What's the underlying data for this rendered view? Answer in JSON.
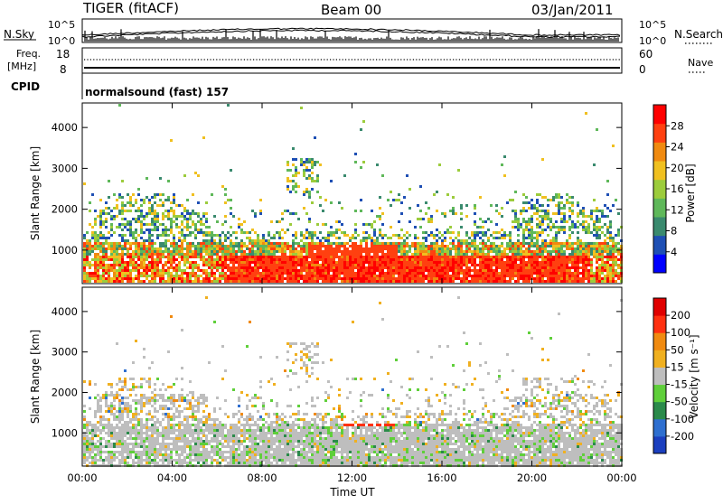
{
  "header": {
    "radar": "TIGER (fitACF)",
    "beam": "Beam 00",
    "date": "03/Jan/2011"
  },
  "params": {
    "nsky_label": "N.Sky",
    "nsky_ticks_left": [
      "10^5",
      "10^0"
    ],
    "nsky_ticks_right": [
      "10^5",
      "10^0"
    ],
    "nsearch_label": "N.Search",
    "freq_label_1": "Freq.",
    "freq_label_2": "[MHz]",
    "freq_ticks": [
      "18",
      "8"
    ],
    "nave_label": "Nave",
    "nave_ticks": [
      "60",
      "0"
    ],
    "cpid_label": "CPID",
    "cpid_value": "normalsound (fast) 157"
  },
  "chart_data": [
    {
      "type": "heatmap",
      "name": "power",
      "ylabel": "Slant Range [km]",
      "yticks": [
        "4000",
        "3000",
        "2000",
        "1000"
      ],
      "xticks": [
        "00:00",
        "04:00",
        "08:00",
        "12:00",
        "16:00",
        "20:00",
        "00:00"
      ],
      "xlim_hours": [
        0,
        24
      ],
      "ylim_km": [
        180,
        4600
      ],
      "colorbar": {
        "label": "Power [dB]",
        "ticks": [
          "28",
          "24",
          "20",
          "16",
          "12",
          "8",
          "4"
        ],
        "range": [
          0,
          32
        ],
        "colors": [
          "#0000ff",
          "#1e4fb4",
          "#3a8a6e",
          "#5fb85a",
          "#9ccc3c",
          "#f0c020",
          "#f08a10",
          "#ff4010",
          "#ff0000"
        ]
      }
    },
    {
      "type": "heatmap",
      "name": "velocity",
      "ylabel": "Slant Range [km]",
      "yticks": [
        "4000",
        "3000",
        "2000",
        "1000"
      ],
      "xticks": [
        "00:00",
        "04:00",
        "08:00",
        "12:00",
        "16:00",
        "20:00",
        "00:00"
      ],
      "xlabel": "Time UT",
      "xlim_hours": [
        0,
        24
      ],
      "ylim_km": [
        180,
        4600
      ],
      "colorbar": {
        "label": "Velocity [m s⁻¹]",
        "ticks": [
          "200",
          "100",
          "50",
          "15",
          "-15",
          "-50",
          "-100",
          "-200"
        ],
        "colors": [
          "#1b3fbf",
          "#2e6fd0",
          "#2a8a4a",
          "#5fcf3a",
          "#bebebe",
          "#f0b020",
          "#f08a10",
          "#ff3010",
          "#e00000"
        ]
      }
    }
  ]
}
